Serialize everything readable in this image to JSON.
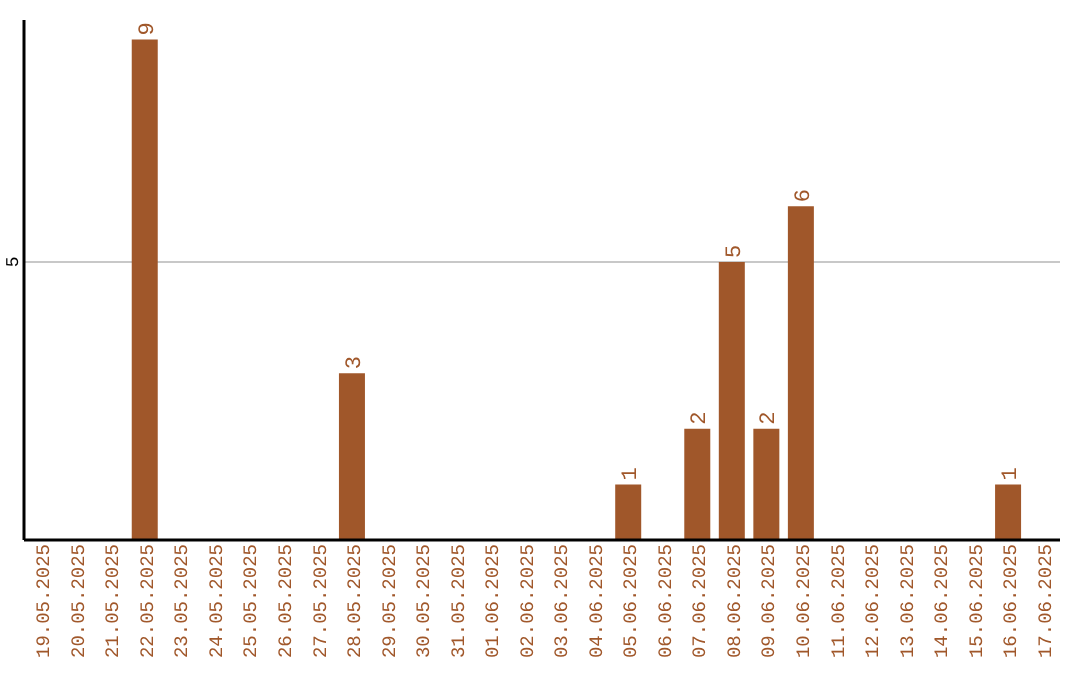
{
  "chart_data": {
    "type": "bar",
    "categories": [
      "19.05.2025",
      "20.05.2025",
      "21.05.2025",
      "22.05.2025",
      "23.05.2025",
      "24.05.2025",
      "25.05.2025",
      "26.05.2025",
      "27.05.2025",
      "28.05.2025",
      "29.05.2025",
      "30.05.2025",
      "31.05.2025",
      "01.06.2025",
      "02.06.2025",
      "03.06.2025",
      "04.06.2025",
      "05.06.2025",
      "06.06.2025",
      "07.06.2025",
      "08.06.2025",
      "09.06.2025",
      "10.06.2025",
      "11.06.2025",
      "12.06.2025",
      "13.06.2025",
      "14.06.2025",
      "15.06.2025",
      "16.06.2025",
      "17.06.2025"
    ],
    "values": [
      0,
      0,
      0,
      9,
      0,
      0,
      0,
      0,
      0,
      3,
      0,
      0,
      0,
      0,
      0,
      0,
      0,
      1,
      0,
      2,
      5,
      2,
      6,
      0,
      0,
      0,
      0,
      0,
      1,
      0
    ],
    "value_labels": [
      null,
      null,
      null,
      "9",
      null,
      null,
      null,
      null,
      null,
      "3",
      null,
      null,
      null,
      null,
      null,
      null,
      null,
      "1",
      null,
      "2",
      "5",
      "2",
      "6",
      null,
      null,
      null,
      null,
      null,
      "1",
      null
    ],
    "color": "#a0572a",
    "ylim": [
      0,
      9.35
    ],
    "yticks": [
      5
    ],
    "grid": "y",
    "legend": false
  }
}
